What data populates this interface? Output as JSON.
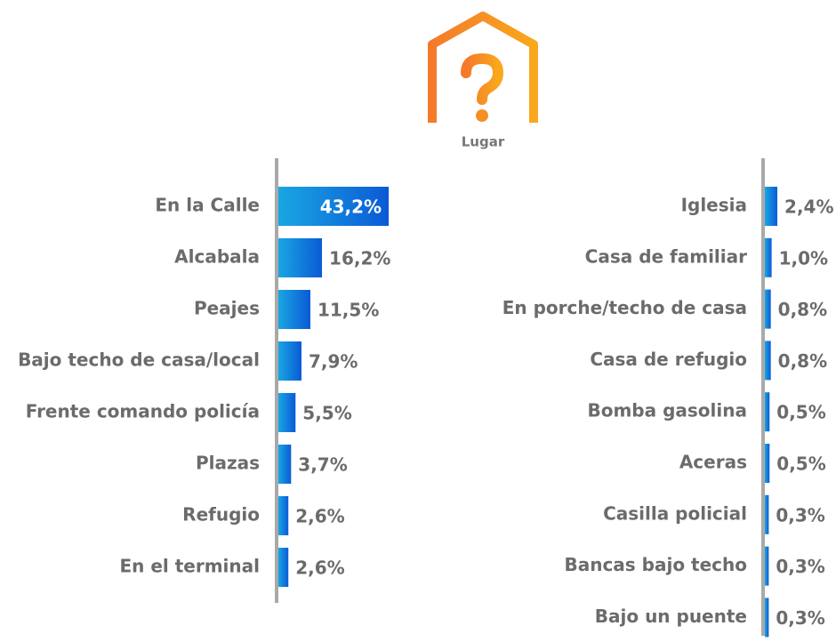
{
  "header": {
    "icon_label": "Lugar"
  },
  "chart_data": [
    {
      "type": "bar",
      "categories": [
        "En la Calle",
        "Alcabala",
        "Peajes",
        "Bajo techo de casa/local",
        "Frente comando policía",
        "Plazas",
        "Refugio",
        "En el terminal"
      ],
      "values": [
        43.2,
        16.2,
        11.5,
        7.9,
        5.5,
        3.7,
        2.6,
        2.6
      ],
      "value_labels": [
        "43,2%",
        "16,2%",
        "11,5%",
        "7,9%",
        "5,5%",
        "3,7%",
        "2,6%",
        "2,6%"
      ]
    },
    {
      "type": "bar",
      "categories": [
        "Iglesia",
        "Casa de familiar",
        "En porche/techo de casa",
        "Casa de refugio",
        "Bomba gasolina",
        "Aceras",
        "Casilla policial",
        "Bancas bajo techo",
        "Bajo un puente"
      ],
      "values": [
        2.4,
        1.0,
        0.8,
        0.8,
        0.5,
        0.5,
        0.3,
        0.3,
        0.3
      ],
      "value_labels": [
        "2,4%",
        "1,0%",
        "0,8%",
        "0,8%",
        "0,5%",
        "0,5%",
        "0,3%",
        "0,3%",
        "0,3%"
      ]
    }
  ]
}
